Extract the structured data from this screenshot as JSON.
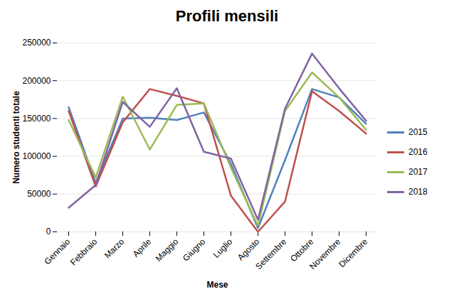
{
  "chart_data": {
    "type": "line",
    "title": "Profili mensili",
    "x_label": "Mese",
    "y_label": "Numero studenti totale",
    "categories": [
      "Gennaio",
      "Febbraio",
      "Marzo",
      "Aprile",
      "Maggio",
      "Giugno",
      "Luglio",
      "Agosto",
      "Settembre",
      "Ottobre",
      "Novembre",
      "Dicembre"
    ],
    "series": [
      {
        "name": "2015",
        "color": "#4F81BD",
        "values": [
          165000,
          65000,
          150000,
          151000,
          148000,
          158000,
          90000,
          5000,
          95000,
          189000,
          178000,
          143000
        ]
      },
      {
        "name": "2016",
        "color": "#C0504D",
        "values": [
          160000,
          60000,
          145000,
          189000,
          180000,
          170000,
          48000,
          0,
          40000,
          186000,
          160000,
          130000
        ]
      },
      {
        "name": "2017",
        "color": "#9BBB59",
        "values": [
          148000,
          72000,
          179000,
          109000,
          168000,
          170000,
          85000,
          8000,
          160000,
          211000,
          178000,
          135000
        ]
      },
      {
        "name": "2018",
        "color": "#8064A2",
        "values": [
          32000,
          62000,
          172000,
          139000,
          190000,
          106000,
          97000,
          16000,
          163000,
          236000,
          190000,
          147000
        ]
      }
    ],
    "ylim": [
      0,
      250000
    ],
    "yticks": [
      0,
      50000,
      100000,
      150000,
      200000,
      250000
    ],
    "grid": true,
    "legend": "right"
  }
}
